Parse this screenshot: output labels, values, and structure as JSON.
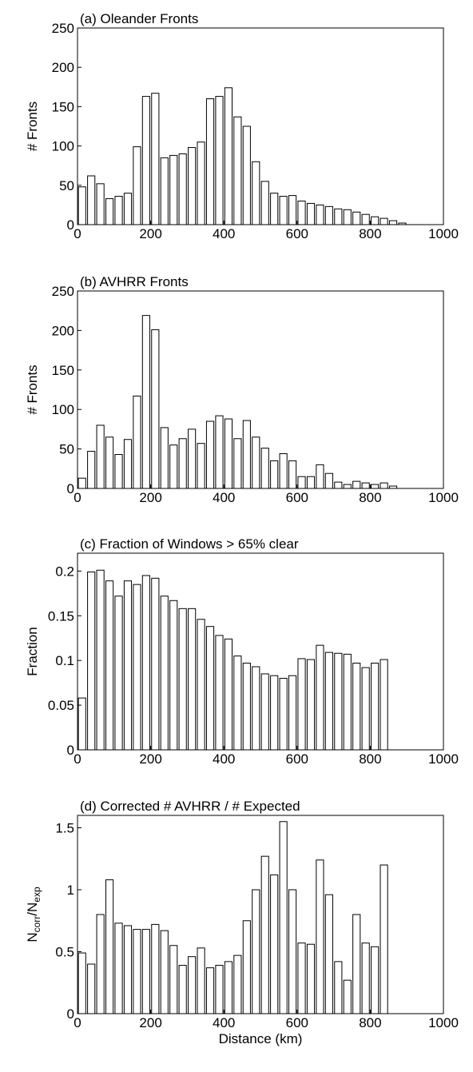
{
  "chart_data": [
    {
      "type": "histogram",
      "title": "(a) Oleander Fronts",
      "ylabel": "# Fronts",
      "bins": [
        0,
        25,
        50,
        75,
        100,
        125,
        150,
        175,
        200,
        225,
        250,
        275,
        300,
        325,
        350,
        375,
        400,
        425,
        450,
        475,
        500,
        525,
        550,
        575,
        600,
        625,
        650,
        675,
        700,
        725,
        750,
        775,
        800,
        825,
        850,
        875,
        900
      ],
      "values": [
        48,
        62,
        52,
        33,
        36,
        40,
        99,
        163,
        167,
        85,
        88,
        90,
        98,
        105,
        160,
        163,
        174,
        137,
        125,
        80,
        55,
        40,
        36,
        37,
        30,
        27,
        25,
        23,
        20,
        19,
        16,
        13,
        10,
        8,
        5,
        2
      ],
      "xlim": [
        0,
        1000
      ],
      "xticks": [
        0,
        200,
        400,
        600,
        800,
        1000
      ],
      "ylim": [
        0,
        250
      ],
      "yticks": [
        0,
        50,
        100,
        150,
        200,
        250
      ],
      "color": "#ffffff"
    },
    {
      "type": "histogram",
      "title": "(b) AVHRR Fronts",
      "ylabel": "# Fronts",
      "bins": [
        0,
        25,
        50,
        75,
        100,
        125,
        150,
        175,
        200,
        225,
        250,
        275,
        300,
        325,
        350,
        375,
        400,
        425,
        450,
        475,
        500,
        525,
        550,
        575,
        600,
        625,
        650,
        675,
        700,
        725,
        750,
        775,
        800,
        825,
        850,
        875
      ],
      "values": [
        13,
        47,
        80,
        65,
        43,
        62,
        117,
        219,
        201,
        77,
        55,
        63,
        75,
        57,
        85,
        92,
        88,
        63,
        86,
        65,
        51,
        35,
        44,
        35,
        15,
        15,
        30,
        19,
        8,
        5,
        9,
        7,
        5,
        7,
        3
      ],
      "xlim": [
        0,
        1000
      ],
      "xticks": [
        0,
        200,
        400,
        600,
        800,
        1000
      ],
      "ylim": [
        0,
        250
      ],
      "yticks": [
        0,
        50,
        100,
        150,
        200,
        250
      ],
      "color": "#ffffff"
    },
    {
      "type": "histogram",
      "title": "(c) Fraction of Windows > 65% clear",
      "ylabel": "Fraction",
      "bins": [
        0,
        25,
        50,
        75,
        100,
        125,
        150,
        175,
        200,
        225,
        250,
        275,
        300,
        325,
        350,
        375,
        400,
        425,
        450,
        475,
        500,
        525,
        550,
        575,
        600,
        625,
        650,
        675,
        700,
        725,
        750,
        775,
        800,
        825,
        850
      ],
      "values": [
        0.058,
        0.199,
        0.201,
        0.189,
        0.172,
        0.189,
        0.185,
        0.195,
        0.192,
        0.172,
        0.167,
        0.158,
        0.158,
        0.146,
        0.138,
        0.128,
        0.124,
        0.105,
        0.097,
        0.093,
        0.085,
        0.083,
        0.08,
        0.083,
        0.102,
        0.101,
        0.117,
        0.109,
        0.108,
        0.107,
        0.097,
        0.092,
        0.097,
        0.101
      ],
      "xlim": [
        0,
        1000
      ],
      "xticks": [
        0,
        200,
        400,
        600,
        800,
        1000
      ],
      "ylim": [
        0,
        0.22
      ],
      "yticks": [
        0,
        0.05,
        0.1,
        0.15,
        0.2
      ],
      "color": "#ffffff"
    },
    {
      "type": "histogram",
      "title": "(d) Corrected # AVHRR / # Expected",
      "ylabel": [
        "N",
        "corr",
        "/N",
        "exp"
      ],
      "xlabel": "Distance (km)",
      "bins": [
        0,
        25,
        50,
        75,
        100,
        125,
        150,
        175,
        200,
        225,
        250,
        275,
        300,
        325,
        350,
        375,
        400,
        425,
        450,
        475,
        500,
        525,
        550,
        575,
        600,
        625,
        650,
        675,
        700,
        725,
        750,
        775,
        800,
        825,
        850
      ],
      "values": [
        0.49,
        0.4,
        0.8,
        1.08,
        0.73,
        0.71,
        0.68,
        0.68,
        0.72,
        0.67,
        0.55,
        0.39,
        0.46,
        0.53,
        0.37,
        0.39,
        0.42,
        0.47,
        0.75,
        1.0,
        1.27,
        1.12,
        1.55,
        1.0,
        0.57,
        0.56,
        1.24,
        0.96,
        0.42,
        0.27,
        0.8,
        0.57,
        0.54,
        1.2
      ],
      "xlim": [
        0,
        1000
      ],
      "xticks": [
        0,
        200,
        400,
        600,
        800,
        1000
      ],
      "ylim": [
        0,
        1.6
      ],
      "yticks": [
        0,
        0.5,
        1,
        1.5
      ],
      "color": "#ffffff"
    }
  ]
}
